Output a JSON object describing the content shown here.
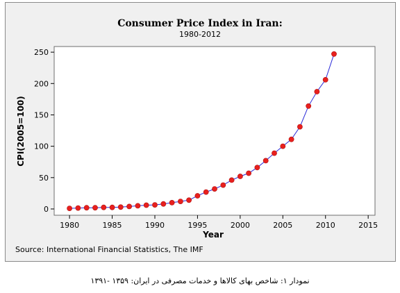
{
  "chart_data": {
    "type": "line",
    "title": "Consumer Price Index in Iran:",
    "subtitle": "1980-2012",
    "xlabel": "Year",
    "ylabel": "CPI(2005=100)",
    "xlim": [
      1978.2,
      2015.8
    ],
    "ylim": [
      -10,
      259
    ],
    "xticks": [
      1980,
      1985,
      1990,
      1995,
      2000,
      2005,
      2010,
      2015
    ],
    "yticks": [
      0,
      50,
      100,
      150,
      200,
      250
    ],
    "grid": false,
    "legend": "none",
    "line_color": "#2a2ad8",
    "marker_color": "#e8201e",
    "x": [
      1980,
      1981,
      1982,
      1983,
      1984,
      1985,
      1986,
      1987,
      1988,
      1989,
      1990,
      1991,
      1992,
      1993,
      1994,
      1995,
      1996,
      1997,
      1998,
      1999,
      2000,
      2001,
      2002,
      2003,
      2004,
      2005,
      2006,
      2007,
      2008,
      2009,
      2010,
      2011
    ],
    "y": [
      1,
      1.5,
      2,
      2,
      2.5,
      2.5,
      3,
      4,
      5,
      6,
      6.5,
      8,
      10,
      12,
      14,
      21,
      27,
      32,
      38,
      46,
      52,
      57,
      66,
      77,
      89,
      100,
      111,
      131,
      164,
      187,
      206,
      247
    ]
  },
  "source_note": "Source: International Financial Statistics, The IMF",
  "caption": "نمودار ۱: شاخص بهای کالاها و خدمات مصرفی در ایران: ۱۳۵۹ -۱۳۹۱"
}
